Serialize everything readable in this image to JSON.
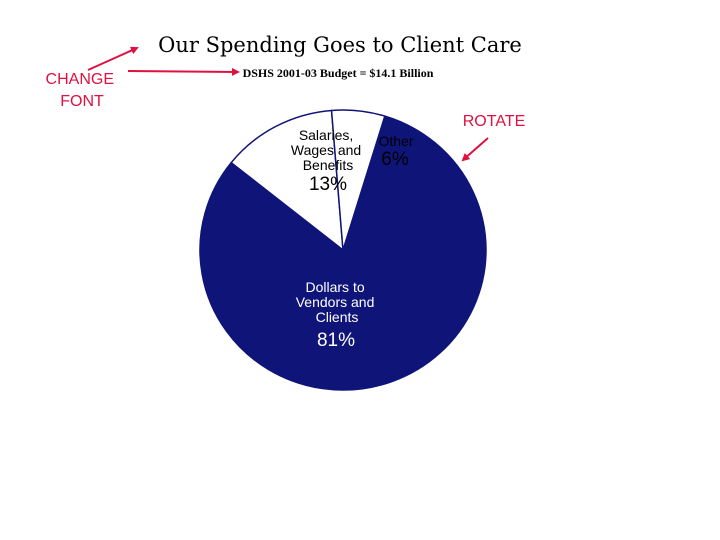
{
  "chart_data": {
    "type": "pie",
    "title": "Our Spending Goes to Client Care",
    "subtitle": "DSHS 2001-03 Budget = $14.1 Billion",
    "slices": [
      {
        "label_lines": [
          "Dollars to",
          "Vendors and",
          "Clients"
        ],
        "value": 81,
        "value_label": "81%",
        "color": "#0f1478"
      },
      {
        "label_lines": [
          "Salaries,",
          "Wages and",
          "Benefits"
        ],
        "value": 13,
        "value_label": "13%",
        "color": "#ffffff"
      },
      {
        "label_lines": [
          "Other"
        ],
        "value": 6,
        "value_label": "6%",
        "color": "#ffffff"
      }
    ]
  },
  "annotations": {
    "change_font_lines": [
      "CHANGE",
      "FONT"
    ],
    "rotate": "ROTATE",
    "color": "#e01040"
  }
}
